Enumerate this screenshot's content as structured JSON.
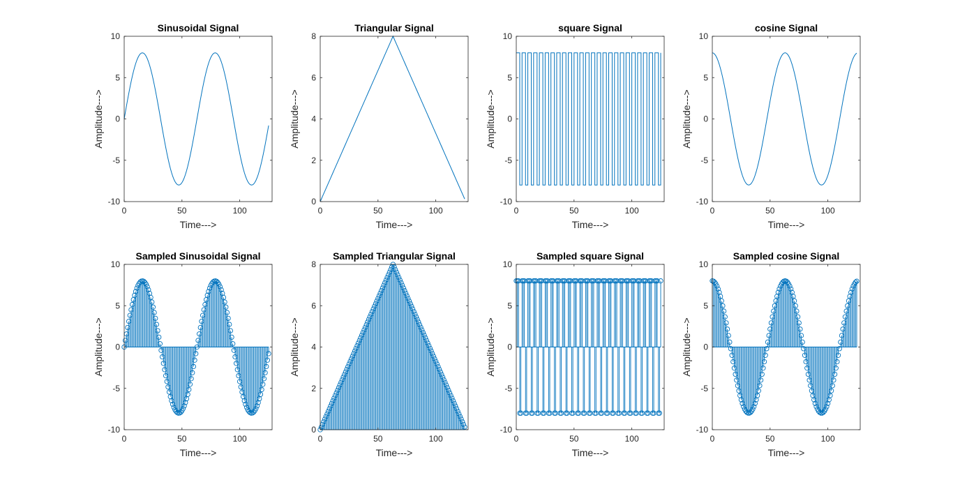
{
  "figure": {
    "line_color": "#0072BD",
    "axis_color": "#262626",
    "background": "#ffffff"
  },
  "chart_data": [
    {
      "type": "line",
      "title": "Sinusoidal Signal",
      "xlabel": "Time--->",
      "ylabel": "Amplitude--->",
      "signal": "sine",
      "amplitude": 8,
      "period": 63,
      "n": 126,
      "xlim": [
        0,
        128
      ],
      "ylim": [
        -10,
        10
      ],
      "xticks": [
        0,
        50,
        100
      ],
      "yticks": [
        -10,
        -5,
        0,
        5,
        10
      ]
    },
    {
      "type": "line",
      "title": "Triangular Signal",
      "xlabel": "Time--->",
      "ylabel": "Amplitude--->",
      "signal": "triangle",
      "amplitude": 8,
      "peak_at": 63,
      "n": 126,
      "xlim": [
        0,
        128
      ],
      "ylim": [
        0,
        8
      ],
      "xticks": [
        0,
        50,
        100
      ],
      "yticks": [
        0,
        2,
        4,
        6,
        8
      ]
    },
    {
      "type": "line",
      "title": "square Signal",
      "xlabel": "Time--->",
      "ylabel": "Amplitude--->",
      "signal": "square",
      "amplitude": 8,
      "half_period": 2.5,
      "n": 126,
      "xlim": [
        0,
        128
      ],
      "ylim": [
        -10,
        10
      ],
      "xticks": [
        0,
        50,
        100
      ],
      "yticks": [
        -10,
        -5,
        0,
        5,
        10
      ]
    },
    {
      "type": "line",
      "title": "cosine Signal",
      "xlabel": "Time--->",
      "ylabel": "Amplitude--->",
      "signal": "cosine",
      "amplitude": 8,
      "period": 63,
      "n": 126,
      "xlim": [
        0,
        128
      ],
      "ylim": [
        -10,
        10
      ],
      "xticks": [
        0,
        50,
        100
      ],
      "yticks": [
        -10,
        -5,
        0,
        5,
        10
      ]
    },
    {
      "type": "stem",
      "title": "Sampled Sinusoidal Signal",
      "xlabel": "Time--->",
      "ylabel": "Amplitude--->",
      "signal": "sine",
      "amplitude": 8,
      "period": 63,
      "n": 126,
      "xlim": [
        0,
        128
      ],
      "ylim": [
        -10,
        10
      ],
      "xticks": [
        0,
        50,
        100
      ],
      "yticks": [
        -10,
        -5,
        0,
        5,
        10
      ]
    },
    {
      "type": "stem",
      "title": "Sampled Triangular Signal",
      "xlabel": "Time--->",
      "ylabel": "Amplitude--->",
      "signal": "triangle",
      "amplitude": 8,
      "peak_at": 63,
      "n": 126,
      "xlim": [
        0,
        128
      ],
      "ylim": [
        0,
        8
      ],
      "xticks": [
        0,
        50,
        100
      ],
      "yticks": [
        0,
        2,
        4,
        6,
        8
      ]
    },
    {
      "type": "stem",
      "title": "Sampled square Signal",
      "xlabel": "Time--->",
      "ylabel": "Amplitude--->",
      "signal": "square",
      "amplitude": 8,
      "half_period": 2.5,
      "n": 126,
      "xlim": [
        0,
        128
      ],
      "ylim": [
        -10,
        10
      ],
      "xticks": [
        0,
        50,
        100
      ],
      "yticks": [
        -10,
        -5,
        0,
        5,
        10
      ]
    },
    {
      "type": "stem",
      "title": "Sampled cosine Signal",
      "xlabel": "Time--->",
      "ylabel": "Amplitude--->",
      "signal": "cosine",
      "amplitude": 8,
      "period": 63,
      "n": 126,
      "xlim": [
        0,
        128
      ],
      "ylim": [
        -10,
        10
      ],
      "xticks": [
        0,
        50,
        100
      ],
      "yticks": [
        -10,
        -5,
        0,
        5,
        10
      ]
    }
  ]
}
